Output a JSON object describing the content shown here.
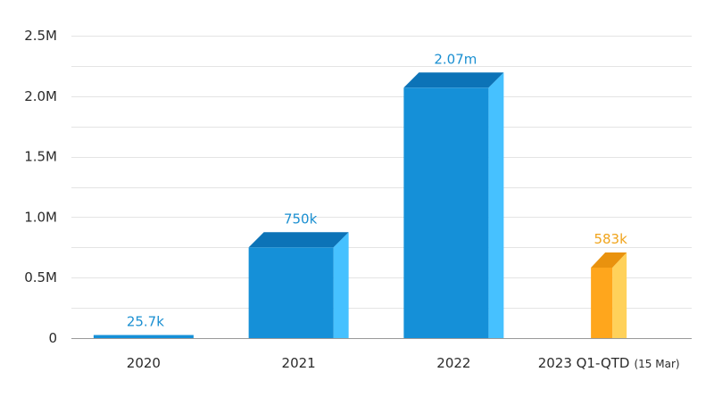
{
  "chart_data": {
    "type": "bar",
    "title": "",
    "xlabel": "",
    "ylabel": "",
    "ylim": [
      0,
      2500000
    ],
    "yticks": [
      {
        "value": 0,
        "label": "0"
      },
      {
        "value": 500000,
        "label": "0.5M"
      },
      {
        "value": 1000000,
        "label": "1.0M"
      },
      {
        "value": 1500000,
        "label": "1.5M"
      },
      {
        "value": 2000000,
        "label": "2.0M"
      },
      {
        "value": 2500000,
        "label": "2.5M"
      }
    ],
    "grid": true,
    "legend": "none",
    "style": "3d-bars",
    "bars": [
      {
        "category": "2020",
        "category_note": "",
        "value": 25700,
        "label": "25.7k",
        "color": "#1590d8",
        "top_color": "#0c73b7",
        "side_color": "#46c1ff",
        "label_color": "#1a8fd1"
      },
      {
        "category": "2021",
        "category_note": "",
        "value": 750000,
        "label": "750k",
        "color": "#1590d8",
        "top_color": "#0c73b7",
        "side_color": "#46c1ff",
        "label_color": "#1a8fd1"
      },
      {
        "category": "2022",
        "category_note": "",
        "value": 2070000,
        "label": "2.07m",
        "color": "#1590d8",
        "top_color": "#0c73b7",
        "side_color": "#46c1ff",
        "label_color": "#1a8fd1"
      },
      {
        "category": "2023 Q1-QTD",
        "category_note": "(15 Mar)",
        "value": 583000,
        "label": "583k",
        "color": "#ffa61c",
        "top_color": "#e9920e",
        "side_color": "#ffd15a",
        "label_color": "#f0a41c"
      }
    ]
  }
}
